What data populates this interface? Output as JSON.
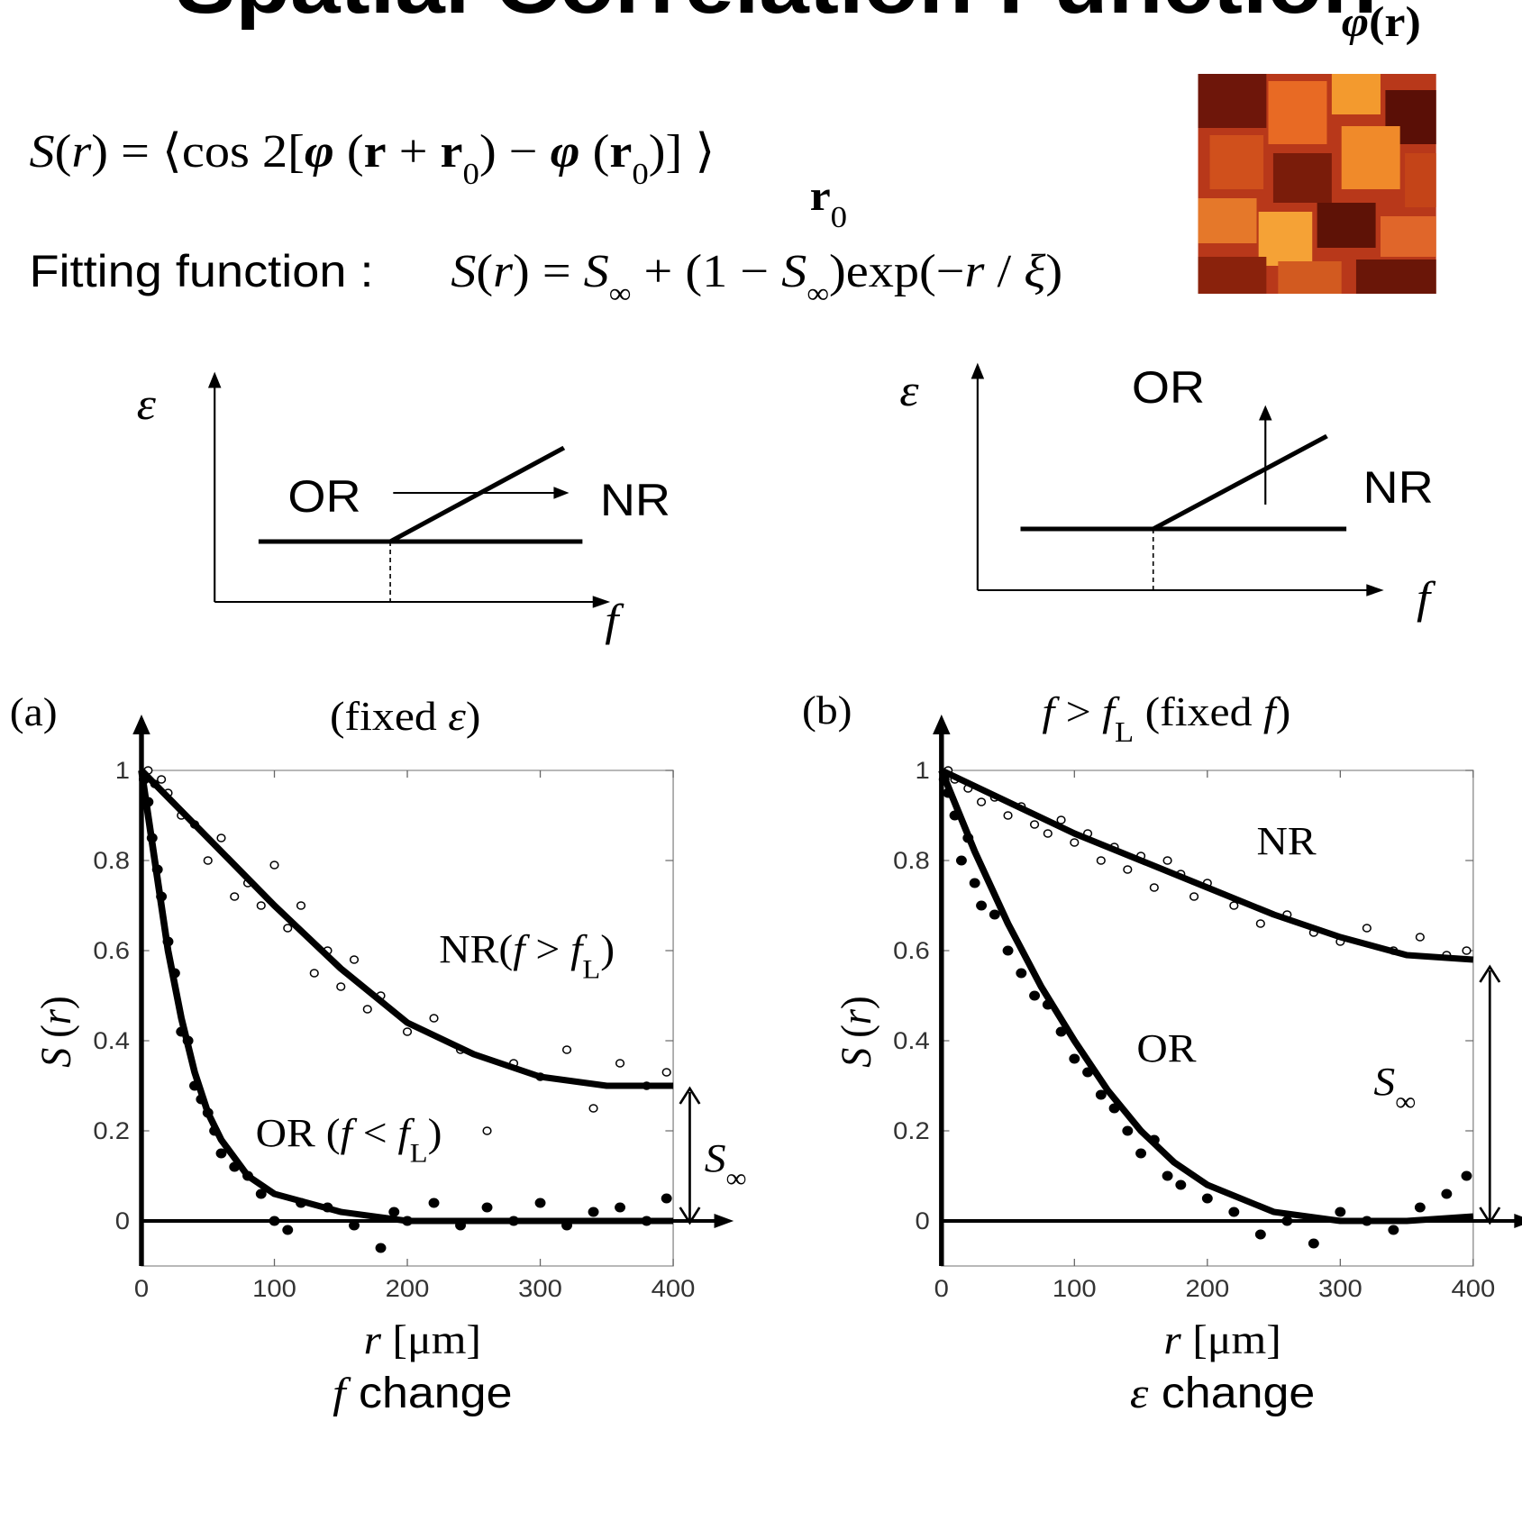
{
  "title": "Spatial Correlation Function",
  "field_symbol": [
    "φ",
    "(",
    "r",
    ")"
  ],
  "definition": [
    "S",
    "(",
    "r",
    ") = ⟨cos 2[",
    "φ",
    " (",
    "r",
    " + ",
    "r",
    "0",
    ") − ",
    "φ",
    " (",
    "r",
    "0",
    ")] ⟩"
  ],
  "definition_subscript": [
    "r",
    "0"
  ],
  "fitting_label": "Fitting function :",
  "fitting_function": [
    "S",
    "(",
    "r",
    ") = ",
    "S",
    "∞",
    " + (1 − ",
    "S",
    "∞",
    ")exp(−",
    "r",
    " / ",
    "ξ",
    ")"
  ],
  "diagrams": [
    {
      "y_axis": "ε",
      "x_axis": "f",
      "labels": [
        "OR",
        "NR"
      ]
    },
    {
      "y_axis": "ε",
      "x_axis": "f",
      "labels": [
        "OR",
        "NR"
      ]
    }
  ],
  "chart_data": [
    {
      "type": "scatter",
      "label": "(a)",
      "title": [
        "(fixed ",
        "ε",
        ")"
      ],
      "xlabel": [
        "r",
        " [μm]"
      ],
      "caption": [
        "f",
        " change"
      ],
      "ylabel": [
        "S",
        " (",
        "r",
        ")"
      ],
      "xlim": [
        0,
        400
      ],
      "ylim": [
        -0.1,
        1
      ],
      "xticks": [
        0,
        100,
        200,
        300,
        400
      ],
      "yticks": [
        0,
        0.2,
        0.4,
        0.6,
        0.8,
        1
      ],
      "series": [
        {
          "marker": "filled",
          "color": "#000000",
          "x": [
            2,
            5,
            8,
            12,
            15,
            20,
            25,
            30,
            35,
            40,
            45,
            50,
            55,
            60,
            70,
            80,
            90,
            100,
            110,
            120,
            140,
            160,
            180,
            190,
            200,
            220,
            240,
            260,
            280,
            300,
            320,
            340,
            360,
            380,
            395
          ],
          "values": [
            0.98,
            0.93,
            0.85,
            0.78,
            0.72,
            0.62,
            0.55,
            0.42,
            0.4,
            0.3,
            0.27,
            0.24,
            0.2,
            0.15,
            0.12,
            0.1,
            0.06,
            0.0,
            -0.02,
            0.04,
            0.03,
            -0.01,
            -0.06,
            0.02,
            0.0,
            0.04,
            -0.01,
            0.03,
            0.0,
            0.04,
            -0.01,
            0.02,
            0.03,
            0.0,
            0.05
          ]
        },
        {
          "marker": "open",
          "color": "#000000",
          "x": [
            5,
            10,
            15,
            20,
            30,
            40,
            50,
            60,
            70,
            80,
            90,
            100,
            110,
            120,
            130,
            140,
            150,
            160,
            170,
            180,
            200,
            220,
            240,
            260,
            280,
            300,
            320,
            340,
            360,
            380,
            395
          ],
          "values": [
            1.0,
            0.97,
            0.98,
            0.95,
            0.9,
            0.88,
            0.8,
            0.85,
            0.72,
            0.75,
            0.7,
            0.79,
            0.65,
            0.7,
            0.55,
            0.6,
            0.52,
            0.58,
            0.47,
            0.5,
            0.42,
            0.45,
            0.38,
            0.2,
            0.35,
            0.32,
            0.38,
            0.25,
            0.35,
            0.3,
            0.33
          ]
        },
        {
          "marker": "line",
          "color": "#000000",
          "x": [
            0,
            10,
            20,
            30,
            40,
            50,
            60,
            80,
            100,
            150,
            200,
            300,
            400
          ],
          "values": [
            1,
            0.8,
            0.6,
            0.45,
            0.33,
            0.24,
            0.18,
            0.1,
            0.06,
            0.02,
            0,
            0,
            0
          ]
        },
        {
          "marker": "line",
          "color": "#000000",
          "x": [
            0,
            50,
            100,
            150,
            200,
            250,
            300,
            350,
            400
          ],
          "values": [
            1,
            0.85,
            0.7,
            0.56,
            0.44,
            0.37,
            0.32,
            0.3,
            0.3
          ]
        }
      ],
      "annotations": [
        {
          "parts": [
            "NR(",
            "f",
            " > ",
            "f",
            "L",
            ")"
          ]
        },
        {
          "parts": [
            "OR  (",
            "f",
            " < ",
            "f",
            "L",
            ")"
          ]
        },
        {
          "parts": [
            "S",
            "∞"
          ]
        }
      ]
    },
    {
      "type": "scatter",
      "label": "(b)",
      "title": [
        "f",
        " > ",
        "f",
        "L",
        "  (fixed ",
        "f",
        ")"
      ],
      "xlabel": [
        "r",
        " [μm]"
      ],
      "caption": [
        "ε",
        " change"
      ],
      "ylabel": [
        "S",
        " (",
        "r",
        ")"
      ],
      "xlim": [
        0,
        400
      ],
      "ylim": [
        -0.1,
        1
      ],
      "xticks": [
        0,
        100,
        200,
        300,
        400
      ],
      "yticks": [
        0,
        0.2,
        0.4,
        0.6,
        0.8,
        1
      ],
      "series": [
        {
          "marker": "filled",
          "color": "#000000",
          "x": [
            2,
            5,
            10,
            15,
            20,
            25,
            30,
            40,
            50,
            60,
            70,
            80,
            90,
            100,
            110,
            120,
            130,
            140,
            150,
            160,
            170,
            180,
            200,
            220,
            240,
            260,
            280,
            300,
            320,
            340,
            360,
            380,
            395
          ],
          "values": [
            0.98,
            0.95,
            0.9,
            0.8,
            0.85,
            0.75,
            0.7,
            0.68,
            0.6,
            0.55,
            0.5,
            0.48,
            0.42,
            0.36,
            0.33,
            0.28,
            0.25,
            0.2,
            0.15,
            0.18,
            0.1,
            0.08,
            0.05,
            0.02,
            -0.03,
            0.0,
            -0.05,
            0.02,
            0.0,
            -0.02,
            0.03,
            0.06,
            0.1
          ]
        },
        {
          "marker": "open",
          "color": "#000000",
          "x": [
            5,
            10,
            20,
            30,
            40,
            50,
            60,
            70,
            80,
            90,
            100,
            110,
            120,
            130,
            140,
            150,
            160,
            170,
            180,
            190,
            200,
            220,
            240,
            260,
            280,
            300,
            320,
            340,
            360,
            380,
            395
          ],
          "values": [
            1.0,
            0.98,
            0.96,
            0.93,
            0.94,
            0.9,
            0.92,
            0.88,
            0.86,
            0.89,
            0.84,
            0.86,
            0.8,
            0.83,
            0.78,
            0.81,
            0.74,
            0.8,
            0.77,
            0.72,
            0.75,
            0.7,
            0.66,
            0.68,
            0.64,
            0.62,
            0.65,
            0.6,
            0.63,
            0.59,
            0.6
          ]
        },
        {
          "marker": "line",
          "color": "#000000",
          "x": [
            0,
            50,
            100,
            150,
            200,
            250,
            300,
            350,
            400
          ],
          "values": [
            1,
            0.93,
            0.86,
            0.8,
            0.74,
            0.68,
            0.63,
            0.59,
            0.58
          ]
        },
        {
          "marker": "line",
          "color": "#000000",
          "x": [
            0,
            25,
            50,
            75,
            100,
            125,
            150,
            175,
            200,
            250,
            300,
            350,
            400
          ],
          "values": [
            1,
            0.82,
            0.66,
            0.52,
            0.4,
            0.29,
            0.2,
            0.13,
            0.08,
            0.02,
            0,
            0,
            0.01
          ]
        }
      ],
      "annotations": [
        {
          "parts": [
            "NR"
          ]
        },
        {
          "parts": [
            "OR"
          ]
        },
        {
          "parts": [
            "S",
            "∞"
          ]
        }
      ]
    }
  ]
}
